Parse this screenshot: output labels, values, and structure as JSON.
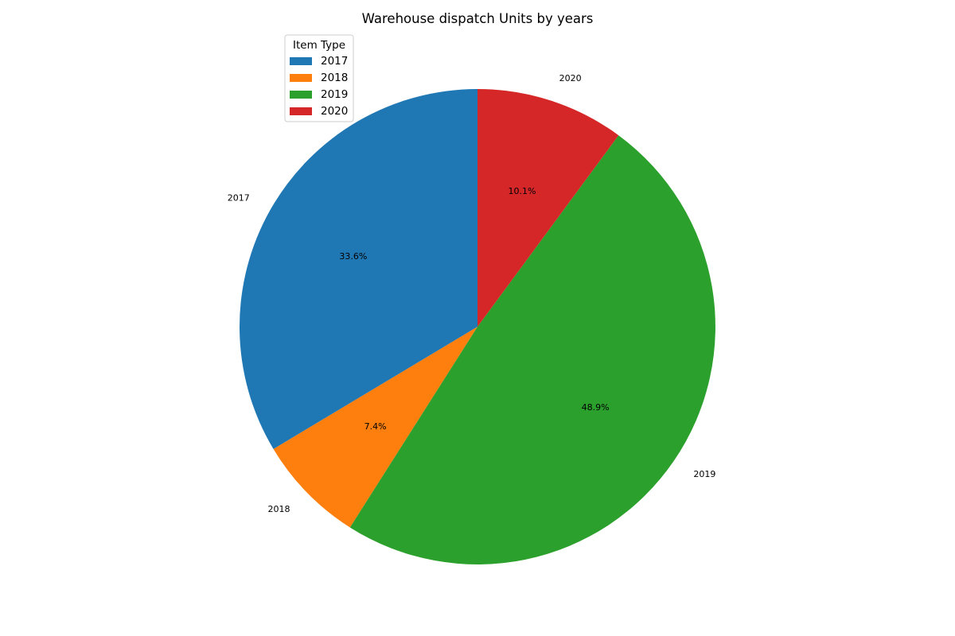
{
  "chart_data": {
    "type": "pie",
    "title": "Warehouse dispatch Units by years",
    "legend_title": "Item Type",
    "legend_placement": "top-left",
    "start_angle_deg": 90,
    "direction": "counterclockwise",
    "slices": [
      {
        "label": "2017",
        "value": 33.6,
        "pct_label": "33.6%",
        "color": "#1f77b4"
      },
      {
        "label": "2018",
        "value": 7.4,
        "pct_label": "7.4%",
        "color": "#ff7f0e"
      },
      {
        "label": "2019",
        "value": 48.9,
        "pct_label": "48.9%",
        "color": "#2ca02c"
      },
      {
        "label": "2020",
        "value": 10.1,
        "pct_label": "10.1%",
        "color": "#d62728"
      }
    ]
  }
}
